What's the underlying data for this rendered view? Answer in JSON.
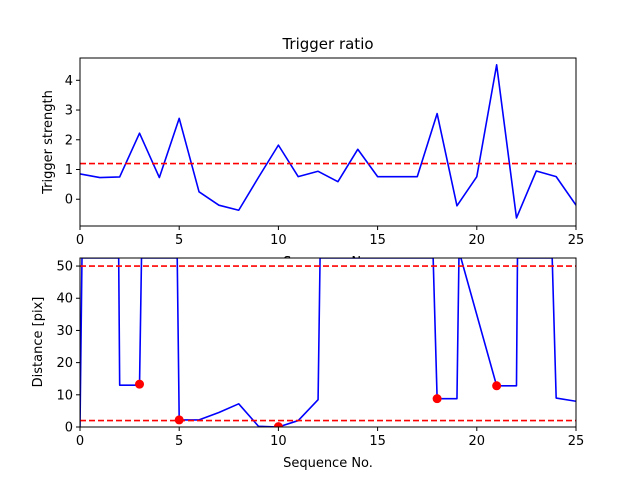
{
  "chart_data": [
    {
      "type": "line",
      "title": "Trigger ratio",
      "xlabel": "Sequence No.",
      "ylabel": "Trigger strength",
      "xlim": [
        0,
        25
      ],
      "ylim": [
        -0.9,
        4.75
      ],
      "x_ticks": [
        0,
        5,
        10,
        15,
        20,
        25
      ],
      "y_ticks": [
        0,
        1,
        2,
        3,
        4
      ],
      "grid": false,
      "series": [
        {
          "color": "#0000ff",
          "x": [
            0,
            1,
            2,
            3,
            4,
            5,
            6,
            7,
            8,
            9,
            10,
            11,
            12,
            13,
            14,
            15,
            16,
            17,
            18,
            19,
            20,
            21,
            22,
            23,
            24,
            25
          ],
          "y": [
            0.85,
            0.73,
            0.75,
            2.22,
            0.73,
            2.72,
            0.25,
            -0.2,
            -0.37,
            0.74,
            1.82,
            0.76,
            0.94,
            0.59,
            1.68,
            0.76,
            0.76,
            0.76,
            2.88,
            -0.22,
            0.76,
            4.52,
            -0.63,
            0.95,
            0.76,
            -0.2
          ]
        }
      ],
      "hlines": [
        {
          "y": 1.2,
          "color": "#ff0000",
          "style": "dashed"
        }
      ]
    },
    {
      "type": "line",
      "title": "",
      "xlabel": "Sequence No.",
      "ylabel": "Distance [pix]",
      "xlim": [
        0,
        25
      ],
      "ylim": [
        0,
        52.5
      ],
      "x_ticks": [
        0,
        5,
        10,
        15,
        20,
        25
      ],
      "y_ticks": [
        0,
        10,
        20,
        30,
        40,
        50
      ],
      "grid": false,
      "series": [
        {
          "color": "#0000ff",
          "x": [
            0,
            0.1,
            0.12,
            1.95,
            2.0,
            3.0,
            3.1,
            4.9,
            5.0,
            6.0,
            7.0,
            8.0,
            9.0,
            10.0,
            11.0,
            12.0,
            12.1,
            12.2,
            17.8,
            18.0,
            19.0,
            19.1,
            19.2,
            21.0,
            22.0,
            22.05,
            22.1,
            23.8,
            24.0,
            25.0
          ],
          "y": [
            0,
            52.5,
            52.5,
            52.5,
            13,
            13,
            52.5,
            52.5,
            2.2,
            2.2,
            4.5,
            7.2,
            0.2,
            0,
            2,
            8.5,
            52.5,
            52.5,
            52.5,
            8.8,
            8.8,
            52.5,
            52.5,
            12.8,
            12.8,
            52.5,
            52.5,
            52.5,
            9,
            8
          ]
        },
        {
          "color": "#ff0000",
          "marker": "circle",
          "x": [
            3,
            5,
            10,
            18,
            21
          ],
          "y": [
            13.3,
            2.2,
            0.1,
            8.8,
            12.8
          ]
        }
      ],
      "hlines": [
        {
          "y": 50,
          "color": "#ff0000",
          "style": "dashed"
        },
        {
          "y": 2,
          "color": "#ff0000",
          "style": "dashed"
        }
      ]
    }
  ]
}
